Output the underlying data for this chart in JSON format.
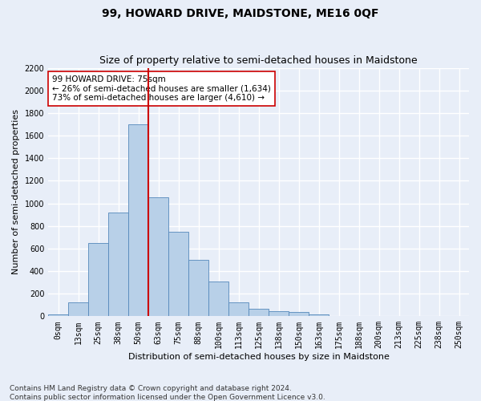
{
  "title": "99, HOWARD DRIVE, MAIDSTONE, ME16 0QF",
  "subtitle": "Size of property relative to semi-detached houses in Maidstone",
  "xlabel": "Distribution of semi-detached houses by size in Maidstone",
  "ylabel": "Number of semi-detached properties",
  "footer": "Contains HM Land Registry data © Crown copyright and database right 2024.\nContains public sector information licensed under the Open Government Licence v3.0.",
  "categories": [
    "0sqm",
    "13sqm",
    "25sqm",
    "38sqm",
    "50sqm",
    "63sqm",
    "75sqm",
    "88sqm",
    "100sqm",
    "113sqm",
    "125sqm",
    "138sqm",
    "150sqm",
    "163sqm",
    "175sqm",
    "188sqm",
    "200sqm",
    "213sqm",
    "225sqm",
    "238sqm",
    "250sqm"
  ],
  "bar_values": [
    20,
    120,
    650,
    920,
    1700,
    1050,
    750,
    500,
    310,
    120,
    65,
    45,
    35,
    15,
    5,
    2,
    1,
    0,
    0,
    0,
    0
  ],
  "bar_color": "#b8d0e8",
  "bar_edge_color": "#5588bb",
  "vline_bin_index": 4,
  "vline_color": "#cc0000",
  "annotation_text": "99 HOWARD DRIVE: 75sqm\n← 26% of semi-detached houses are smaller (1,634)\n73% of semi-detached houses are larger (4,610) →",
  "annotation_box_color": "#ffffff",
  "annotation_box_edge": "#cc0000",
  "ylim": [
    0,
    2200
  ],
  "yticks": [
    0,
    200,
    400,
    600,
    800,
    1000,
    1200,
    1400,
    1600,
    1800,
    2000,
    2200
  ],
  "background_color": "#e8eef8",
  "grid_color": "#ffffff",
  "title_fontsize": 10,
  "subtitle_fontsize": 9,
  "axis_label_fontsize": 8,
  "tick_fontsize": 7,
  "footer_fontsize": 6.5
}
